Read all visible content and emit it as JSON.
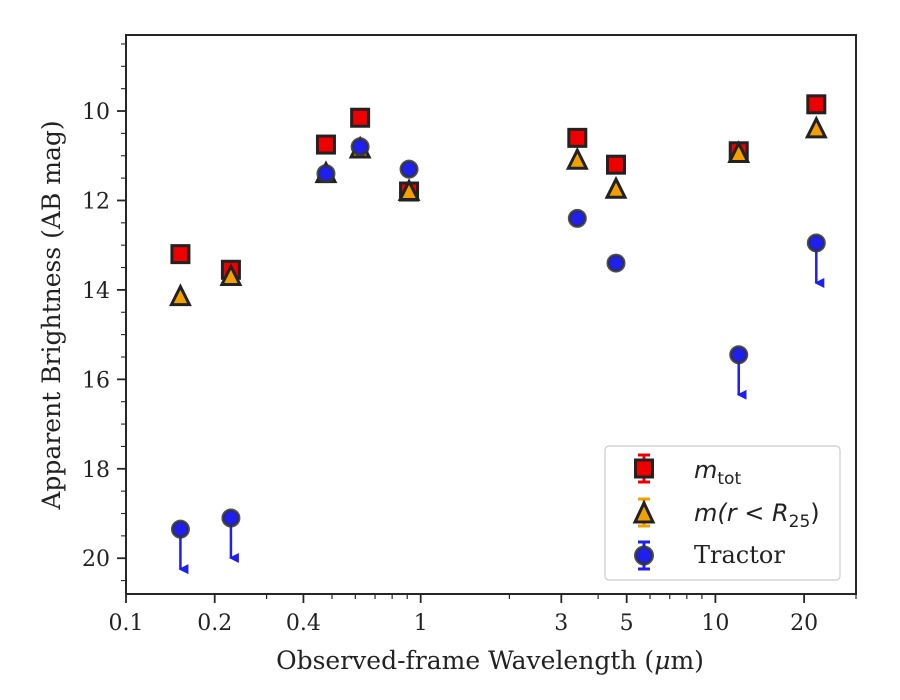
{
  "chart_data": {
    "type": "scatter",
    "xlabel_pre": "Observed-frame Wavelength (",
    "xlabel_mu": "μ",
    "xlabel_post": "m)",
    "ylabel": "Apparent Brightness (AB mag)",
    "xscale": "log",
    "xlim": [
      0.1,
      30
    ],
    "ylim": [
      20.8,
      8.3
    ],
    "y_inverted": true,
    "grid": false,
    "legend_position": "lower-right",
    "x_ticks": [
      {
        "value": 0.1,
        "label": "0.1"
      },
      {
        "value": 0.2,
        "label": "0.2"
      },
      {
        "value": 0.4,
        "label": "0.4"
      },
      {
        "value": 1,
        "label": "1"
      },
      {
        "value": 3,
        "label": "3"
      },
      {
        "value": 5,
        "label": "5"
      },
      {
        "value": 10,
        "label": "10"
      },
      {
        "value": 20,
        "label": "20"
      }
    ],
    "y_ticks": [
      {
        "value": 10,
        "label": "10"
      },
      {
        "value": 12,
        "label": "12"
      },
      {
        "value": 14,
        "label": "14"
      },
      {
        "value": 16,
        "label": "16"
      },
      {
        "value": 18,
        "label": "18"
      },
      {
        "value": 20,
        "label": "20"
      }
    ],
    "series": [
      {
        "legend_main": "m",
        "legend_sub": "tot",
        "marker": "square",
        "color": "#ee0000",
        "points": [
          {
            "x": 0.153,
            "y": 13.2
          },
          {
            "x": 0.227,
            "y": 13.55
          },
          {
            "x": 0.477,
            "y": 10.75
          },
          {
            "x": 0.623,
            "y": 10.15
          },
          {
            "x": 0.913,
            "y": 11.8
          },
          {
            "x": 3.4,
            "y": 10.6
          },
          {
            "x": 4.6,
            "y": 11.2
          },
          {
            "x": 12.0,
            "y": 10.9
          },
          {
            "x": 22.0,
            "y": 9.85
          }
        ]
      },
      {
        "legend_main": "m(r < R",
        "legend_sub": "25",
        "legend_close": ")",
        "marker": "triangle",
        "color": "#f2a000",
        "points": [
          {
            "x": 0.153,
            "y": 14.15
          },
          {
            "x": 0.227,
            "y": 13.7
          },
          {
            "x": 0.477,
            "y": 11.4
          },
          {
            "x": 0.623,
            "y": 10.85
          },
          {
            "x": 0.913,
            "y": 11.8
          },
          {
            "x": 3.4,
            "y": 11.1
          },
          {
            "x": 4.6,
            "y": 11.75
          },
          {
            "x": 12.0,
            "y": 10.95
          },
          {
            "x": 22.0,
            "y": 10.4
          }
        ]
      },
      {
        "legend_text": "Tractor",
        "marker": "circle",
        "color": "#1f1fee",
        "points": [
          {
            "x": 0.153,
            "y": 19.35,
            "upper_limit": true
          },
          {
            "x": 0.227,
            "y": 19.1,
            "upper_limit": true
          },
          {
            "x": 0.477,
            "y": 11.4
          },
          {
            "x": 0.623,
            "y": 10.8
          },
          {
            "x": 0.913,
            "y": 11.3
          },
          {
            "x": 3.4,
            "y": 12.4
          },
          {
            "x": 4.6,
            "y": 13.4
          },
          {
            "x": 12.0,
            "y": 15.45,
            "upper_limit": true
          },
          {
            "x": 22.0,
            "y": 12.95,
            "upper_limit": true
          }
        ]
      }
    ]
  }
}
